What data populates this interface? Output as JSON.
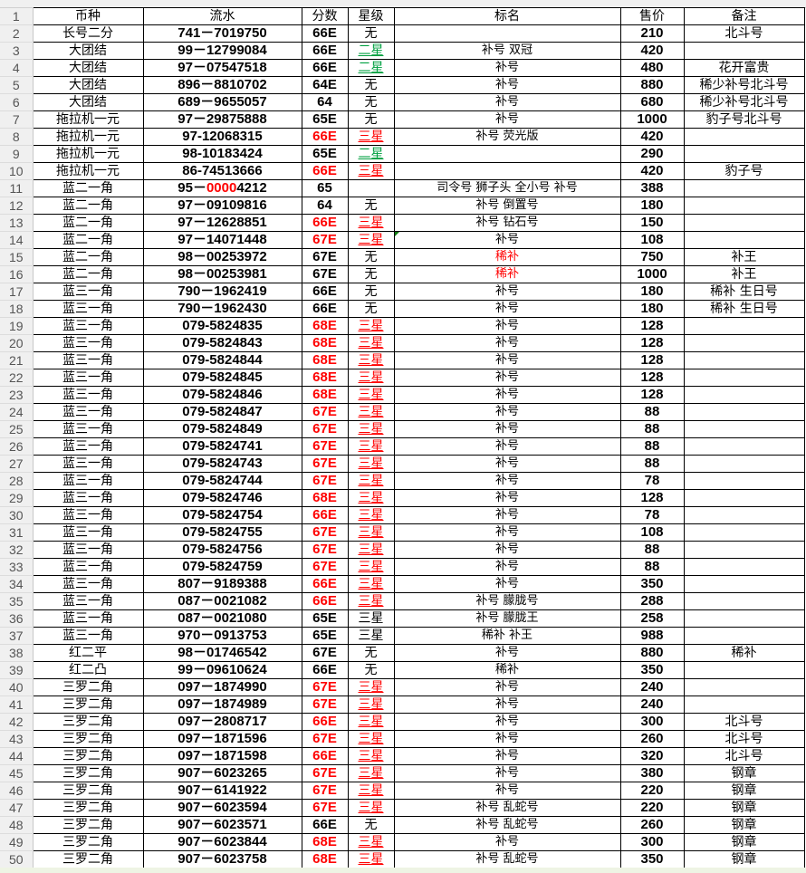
{
  "headers": [
    "币种",
    "流水",
    "分数",
    "星级",
    "标名",
    "售价",
    "备注"
  ],
  "colors": {
    "red": "#ff0000",
    "green": "#00a040"
  },
  "rows": [
    {
      "c": "长号二分",
      "s": [
        "741－7019750"
      ],
      "f": "66E",
      "x": "无",
      "n": "",
      "p": "210",
      "b": "北斗号"
    },
    {
      "c": "大团结",
      "s": [
        "99－12799084"
      ],
      "f": "66E",
      "x": "二星",
      "xs": "green",
      "n": "补号 双冠",
      "p": "420",
      "b": ""
    },
    {
      "c": "大团结",
      "s": [
        "97－07547518"
      ],
      "f": "66E",
      "x": "二星",
      "xs": "green",
      "n": "补号",
      "p": "480",
      "b": "花开富贵"
    },
    {
      "c": "大团结",
      "s": [
        "896－8810702"
      ],
      "f": "64E",
      "x": "无",
      "n": "补号",
      "p": "880",
      "b": "稀少补号北斗号"
    },
    {
      "c": "大团结",
      "s": [
        "689－9655057"
      ],
      "f": "64",
      "x": "无",
      "n": "补号",
      "p": "680",
      "b": "稀少补号北斗号"
    },
    {
      "c": "拖拉机一元",
      "s": [
        "97－29875888"
      ],
      "f": "65E",
      "x": "无",
      "n": "补号",
      "p": "1000",
      "b": "豹子号北斗号"
    },
    {
      "c": "拖拉机一元",
      "s": [
        "97-12068315"
      ],
      "f": "66E",
      "fr": true,
      "x": "三星",
      "xs": "red",
      "n": "补号 荧光版",
      "p": "420",
      "b": ""
    },
    {
      "c": "拖拉机一元",
      "s": [
        "98-10183424"
      ],
      "f": "65E",
      "x": "二星",
      "xs": "green",
      "n": "",
      "p": "290",
      "b": ""
    },
    {
      "c": "拖拉机一元",
      "s": [
        "86-74513666"
      ],
      "f": "66E",
      "fr": true,
      "x": "三星",
      "xs": "red",
      "n": "",
      "p": "420",
      "b": "豹子号"
    },
    {
      "c": "蓝二一角",
      "s": [
        "95－",
        "0000",
        "4212"
      ],
      "f": "65",
      "x": "",
      "n": "司令号 狮子头 全小号 补号",
      "p": "388",
      "b": ""
    },
    {
      "c": "蓝二一角",
      "s": [
        "97－09109816"
      ],
      "f": "64",
      "x": "无",
      "n": "补号 倒置号",
      "p": "180",
      "b": ""
    },
    {
      "c": "蓝二一角",
      "s": [
        "97－12628851"
      ],
      "f": "66E",
      "fr": true,
      "x": "三星",
      "xs": "red",
      "n": "补号 钻石号",
      "p": "150",
      "b": ""
    },
    {
      "c": "蓝二一角",
      "s": [
        "97－14071448"
      ],
      "f": "67E",
      "fr": true,
      "x": "三星",
      "xs": "red",
      "n": "补号",
      "p": "108",
      "b": "",
      "cm": true
    },
    {
      "c": "蓝二一角",
      "s": [
        "98－00253972"
      ],
      "f": "67E",
      "x": "无",
      "n": "稀补",
      "nr": true,
      "p": "750",
      "b": "补王"
    },
    {
      "c": "蓝二一角",
      "s": [
        "98－00253981"
      ],
      "f": "67E",
      "x": "无",
      "n": "稀补",
      "nr": true,
      "p": "1000",
      "b": "补王"
    },
    {
      "c": "蓝三一角",
      "s": [
        "790－1962419"
      ],
      "f": "66E",
      "x": "无",
      "n": "补号",
      "p": "180",
      "b": "稀补 生日号"
    },
    {
      "c": "蓝三一角",
      "s": [
        "790－1962430"
      ],
      "f": "66E",
      "x": "无",
      "n": "补号",
      "p": "180",
      "b": "稀补 生日号"
    },
    {
      "c": "蓝三一角",
      "s": [
        "079-5824835"
      ],
      "f": "68E",
      "fr": true,
      "x": "三星",
      "xs": "red",
      "n": "补号",
      "p": "128",
      "b": ""
    },
    {
      "c": "蓝三一角",
      "s": [
        "079-5824843"
      ],
      "f": "68E",
      "fr": true,
      "x": "三星",
      "xs": "red",
      "n": "补号",
      "p": "128",
      "b": ""
    },
    {
      "c": "蓝三一角",
      "s": [
        "079-5824844"
      ],
      "f": "68E",
      "fr": true,
      "x": "三星",
      "xs": "red",
      "n": "补号",
      "p": "128",
      "b": ""
    },
    {
      "c": "蓝三一角",
      "s": [
        "079-5824845"
      ],
      "f": "68E",
      "fr": true,
      "x": "三星",
      "xs": "red",
      "n": "补号",
      "p": "128",
      "b": ""
    },
    {
      "c": "蓝三一角",
      "s": [
        "079-5824846"
      ],
      "f": "68E",
      "fr": true,
      "x": "三星",
      "xs": "red",
      "n": "补号",
      "p": "128",
      "b": ""
    },
    {
      "c": "蓝三一角",
      "s": [
        "079-5824847"
      ],
      "f": "67E",
      "fr": true,
      "x": "三星",
      "xs": "red",
      "n": "补号",
      "p": "88",
      "b": ""
    },
    {
      "c": "蓝三一角",
      "s": [
        "079-5824849"
      ],
      "f": "67E",
      "fr": true,
      "x": "三星",
      "xs": "red",
      "n": "补号",
      "p": "88",
      "b": ""
    },
    {
      "c": "蓝三一角",
      "s": [
        "079-5824741"
      ],
      "f": "67E",
      "fr": true,
      "x": "三星",
      "xs": "red",
      "n": "补号",
      "p": "88",
      "b": ""
    },
    {
      "c": "蓝三一角",
      "s": [
        "079-5824743"
      ],
      "f": "67E",
      "fr": true,
      "x": "三星",
      "xs": "red",
      "n": "补号",
      "p": "88",
      "b": ""
    },
    {
      "c": "蓝三一角",
      "s": [
        "079-5824744"
      ],
      "f": "67E",
      "fr": true,
      "x": "三星",
      "xs": "red",
      "n": "补号",
      "p": "78",
      "b": ""
    },
    {
      "c": "蓝三一角",
      "s": [
        "079-5824746"
      ],
      "f": "68E",
      "fr": true,
      "x": "三星",
      "xs": "red",
      "n": "补号",
      "p": "128",
      "b": ""
    },
    {
      "c": "蓝三一角",
      "s": [
        "079-5824754"
      ],
      "f": "66E",
      "fr": true,
      "x": "三星",
      "xs": "red",
      "n": "补号",
      "p": "78",
      "b": ""
    },
    {
      "c": "蓝三一角",
      "s": [
        "079-5824755"
      ],
      "f": "67E",
      "fr": true,
      "x": "三星",
      "xs": "red",
      "n": "补号",
      "p": "108",
      "b": ""
    },
    {
      "c": "蓝三一角",
      "s": [
        "079-5824756"
      ],
      "f": "67E",
      "fr": true,
      "x": "三星",
      "xs": "red",
      "n": "补号",
      "p": "88",
      "b": ""
    },
    {
      "c": "蓝三一角",
      "s": [
        "079-5824759"
      ],
      "f": "67E",
      "fr": true,
      "x": "三星",
      "xs": "red",
      "n": "补号",
      "p": "88",
      "b": ""
    },
    {
      "c": "蓝三一角",
      "s": [
        "807－9189388"
      ],
      "f": "66E",
      "fr": true,
      "x": "三星",
      "xs": "red",
      "n": "补号",
      "p": "350",
      "b": ""
    },
    {
      "c": "蓝三一角",
      "s": [
        "087－0021082"
      ],
      "f": "66E",
      "fr": true,
      "x": "三星",
      "xs": "red",
      "n": "补号 朦胧号",
      "p": "288",
      "b": ""
    },
    {
      "c": "蓝三一角",
      "s": [
        "087－0021080"
      ],
      "f": "65E",
      "x": "三星",
      "n": "补号 朦胧王",
      "p": "258",
      "b": ""
    },
    {
      "c": "蓝三一角",
      "s": [
        "970－0913753"
      ],
      "f": "65E",
      "x": "三星",
      "n": "稀补 补王",
      "p": "988",
      "b": ""
    },
    {
      "c": "红二平",
      "s": [
        "98－01746542"
      ],
      "f": "67E",
      "x": "无",
      "n": "补号",
      "p": "880",
      "b": "稀补"
    },
    {
      "c": "红二凸",
      "s": [
        "99－09610624"
      ],
      "f": "66E",
      "x": "无",
      "n": "稀补",
      "p": "350",
      "b": ""
    },
    {
      "c": "三罗二角",
      "s": [
        "097－1874990"
      ],
      "f": "67E",
      "fr": true,
      "x": "三星",
      "xs": "red",
      "n": "补号",
      "p": "240",
      "b": ""
    },
    {
      "c": "三罗二角",
      "s": [
        "097－1874989"
      ],
      "f": "67E",
      "fr": true,
      "x": "三星",
      "xs": "red",
      "n": "补号",
      "p": "240",
      "b": ""
    },
    {
      "c": "三罗二角",
      "s": [
        "097－2808717"
      ],
      "f": "66E",
      "fr": true,
      "x": "三星",
      "xs": "red",
      "n": "补号",
      "p": "300",
      "b": "北斗号"
    },
    {
      "c": "三罗二角",
      "s": [
        "097－1871596"
      ],
      "f": "67E",
      "fr": true,
      "x": "三星",
      "xs": "red",
      "n": "补号",
      "p": "260",
      "b": "北斗号"
    },
    {
      "c": "三罗二角",
      "s": [
        "097－1871598"
      ],
      "f": "66E",
      "fr": true,
      "x": "三星",
      "xs": "red",
      "n": "补号",
      "p": "320",
      "b": "北斗号"
    },
    {
      "c": "三罗二角",
      "s": [
        "907－6023265"
      ],
      "f": "67E",
      "fr": true,
      "x": "三星",
      "xs": "red",
      "n": "补号",
      "p": "380",
      "b": "钢章"
    },
    {
      "c": "三罗二角",
      "s": [
        "907－6141922"
      ],
      "f": "67E",
      "fr": true,
      "x": "三星",
      "xs": "red",
      "n": "补号",
      "p": "220",
      "b": "钢章"
    },
    {
      "c": "三罗二角",
      "s": [
        "907－6023594"
      ],
      "f": "67E",
      "fr": true,
      "x": "三星",
      "xs": "red",
      "n": "补号 乱蛇号",
      "p": "220",
      "b": "钢章"
    },
    {
      "c": "三罗二角",
      "s": [
        "907－6023571"
      ],
      "f": "66E",
      "x": "无",
      "n": "补号 乱蛇号",
      "p": "260",
      "b": "钢章"
    },
    {
      "c": "三罗二角",
      "s": [
        "907－6023844"
      ],
      "f": "68E",
      "fr": true,
      "x": "三星",
      "xs": "red",
      "n": "补号",
      "p": "300",
      "b": "钢章"
    },
    {
      "c": "三罗二角",
      "s": [
        "907－6023758"
      ],
      "f": "68E",
      "fr": true,
      "x": "三星",
      "xs": "red",
      "n": "补号 乱蛇号",
      "p": "350",
      "b": "钢章"
    }
  ]
}
